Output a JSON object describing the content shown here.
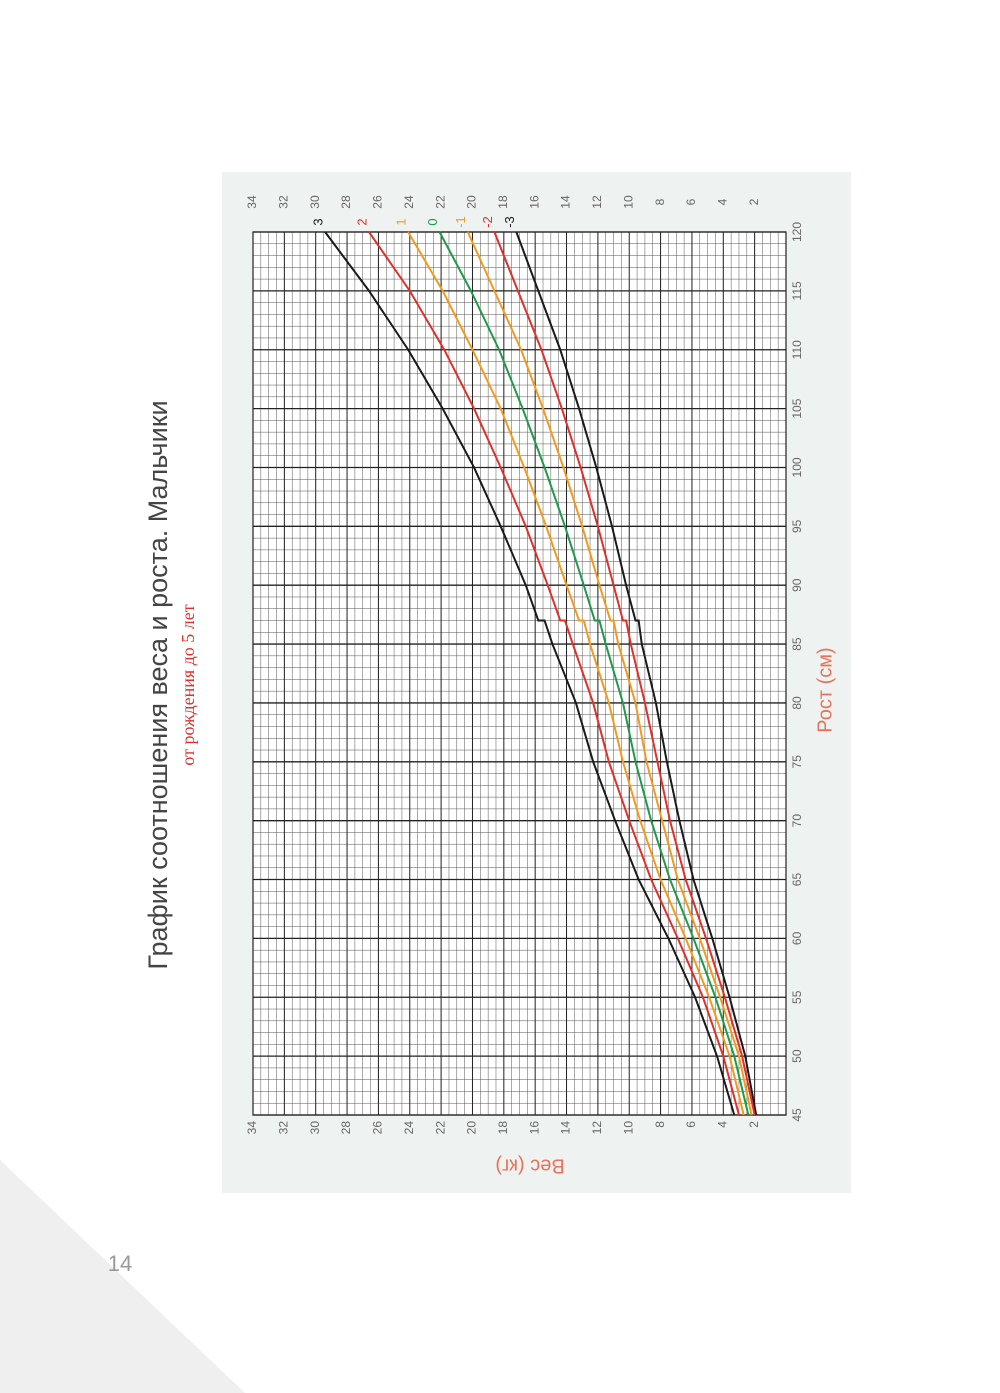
{
  "chart_data": {
    "type": "line",
    "title": "График соотношения веса и роста. Мальчики",
    "subtitle": "от рождения до 5 лет",
    "x_label": "Рост (см)",
    "y_label": "Вес (кг)",
    "x": [
      45,
      50,
      55,
      60,
      65,
      70,
      75,
      80,
      85,
      87,
      87,
      90,
      95,
      100,
      105,
      110,
      115,
      120
    ],
    "series": [
      {
        "name": "-3",
        "color": "#1a1a1a",
        "values": [
          1.9,
          2.6,
          3.6,
          4.7,
          5.9,
          6.8,
          7.6,
          8.3,
          9.2,
          9.4,
          9.6,
          10.2,
          11.1,
          12.1,
          13.2,
          14.4,
          15.8,
          17.2
        ]
      },
      {
        "name": "-2",
        "color": "#e0302a",
        "values": [
          2.0,
          2.8,
          3.9,
          5.1,
          6.4,
          7.4,
          8.2,
          9.0,
          9.9,
          10.2,
          10.4,
          11.0,
          12.0,
          13.1,
          14.3,
          15.6,
          17.1,
          18.6
        ]
      },
      {
        "name": "-1",
        "color": "#f39a1e",
        "values": [
          2.2,
          3.0,
          4.2,
          5.5,
          6.9,
          7.9,
          8.9,
          9.6,
          10.7,
          11.0,
          11.2,
          11.9,
          13.0,
          14.2,
          15.5,
          16.9,
          18.6,
          20.3
        ]
      },
      {
        "name": "0",
        "color": "#1f9a4a",
        "values": [
          2.4,
          3.3,
          4.5,
          5.9,
          7.4,
          8.6,
          9.6,
          10.4,
          11.5,
          11.9,
          12.2,
          12.9,
          14.1,
          15.4,
          16.8,
          18.3,
          20.1,
          22.1
        ]
      },
      {
        "name": "1",
        "color": "#f39a1e",
        "values": [
          2.7,
          3.6,
          4.9,
          6.4,
          8.0,
          9.3,
          10.4,
          11.3,
          12.5,
          12.9,
          13.2,
          14.0,
          15.3,
          16.7,
          18.2,
          20.0,
          21.9,
          24.1
        ]
      },
      {
        "name": "2",
        "color": "#e0302a",
        "values": [
          3.0,
          4.0,
          5.3,
          6.9,
          8.6,
          10.0,
          11.3,
          12.3,
          13.6,
          14.1,
          14.4,
          15.2,
          16.6,
          18.2,
          19.9,
          21.8,
          24.0,
          26.6
        ]
      },
      {
        "name": "3",
        "color": "#1a1a1a",
        "values": [
          3.3,
          4.4,
          5.8,
          7.5,
          9.4,
          10.9,
          12.3,
          13.4,
          14.9,
          15.4,
          15.8,
          16.6,
          18.2,
          19.9,
          21.9,
          24.1,
          26.6,
          29.4
        ]
      }
    ],
    "xlim": [
      45,
      120
    ],
    "ylim": [
      0,
      34
    ],
    "xticks": [
      45,
      50,
      55,
      60,
      65,
      70,
      75,
      80,
      85,
      90,
      95,
      100,
      105,
      110,
      115,
      120
    ],
    "yticks": [
      2,
      4,
      6,
      8,
      10,
      12,
      14,
      16,
      18,
      20,
      22,
      24,
      26,
      28,
      30,
      32,
      34
    ],
    "grid": true
  },
  "page_number": "14"
}
